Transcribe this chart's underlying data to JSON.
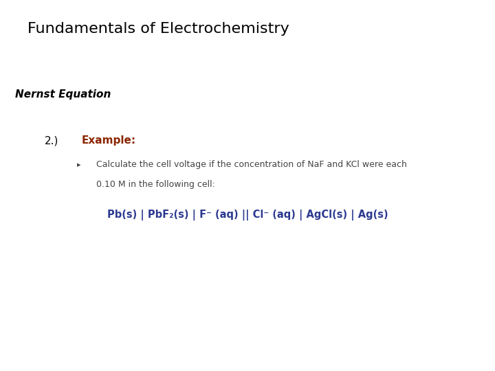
{
  "title": "Fundamentals of Electrochemistry",
  "subtitle": "Nernst Equation",
  "section": "2.)",
  "example_label": "Example:",
  "bullet_text_line1": "Calculate the cell voltage if the concentration of NaF and KCl were each",
  "bullet_text_line2": "0.10 M in the following cell:",
  "cell_notation": "Pb(s) | PbF₂(s) | F⁻ (aq) || Cl⁻ (aq) | AgCl(s) | Ag(s)",
  "title_color": "#000000",
  "subtitle_color": "#000000",
  "section_color": "#000000",
  "example_color": "#8B2500",
  "bullet_color": "#444444",
  "cell_color": "#2B3990",
  "background_color": "#ffffff",
  "title_fontsize": 16,
  "subtitle_fontsize": 11,
  "section_fontsize": 11,
  "example_fontsize": 11,
  "bullet_fontsize": 9,
  "cell_fontsize": 10.5
}
